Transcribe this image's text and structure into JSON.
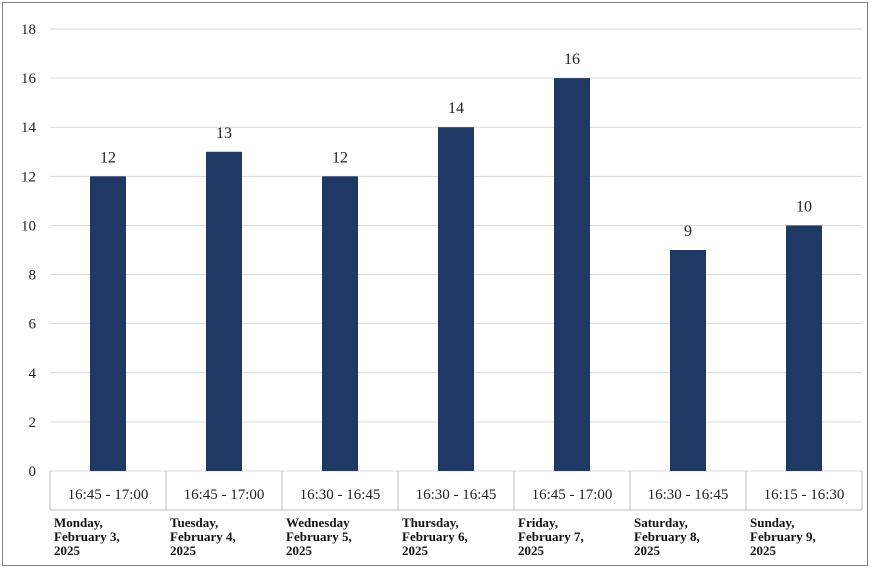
{
  "chart_data": {
    "type": "bar",
    "categories": [
      {
        "time": "16:45 - 17:00",
        "day": [
          "Monday,",
          "February 3,",
          "2025"
        ]
      },
      {
        "time": "16:45 - 17:00",
        "day": [
          "Tuesday,",
          "February 4,",
          "2025"
        ]
      },
      {
        "time": "16:30 - 16:45",
        "day": [
          "Wednesday",
          "February 5,",
          "2025"
        ]
      },
      {
        "time": "16:30 - 16:45",
        "day": [
          "Thursday,",
          "February 6,",
          "2025"
        ]
      },
      {
        "time": "16:45 - 17:00",
        "day": [
          "Friday,",
          "February 7,",
          "2025"
        ]
      },
      {
        "time": "16:30 - 16:45",
        "day": [
          "Saturday,",
          "February 8,",
          "2025"
        ]
      },
      {
        "time": "16:15 - 16:30",
        "day": [
          "Sunday,",
          "February 9,",
          "2025"
        ]
      }
    ],
    "values": [
      12,
      13,
      12,
      14,
      16,
      9,
      10
    ],
    "title": "",
    "xlabel": "",
    "ylabel": "",
    "ylim": [
      0,
      18
    ],
    "yticks": [
      0,
      2,
      4,
      6,
      8,
      10,
      12,
      14,
      16,
      18
    ],
    "grid": true,
    "legend": "none",
    "bar_color": "#1f3864",
    "grid_color": "#d9d9d9"
  }
}
